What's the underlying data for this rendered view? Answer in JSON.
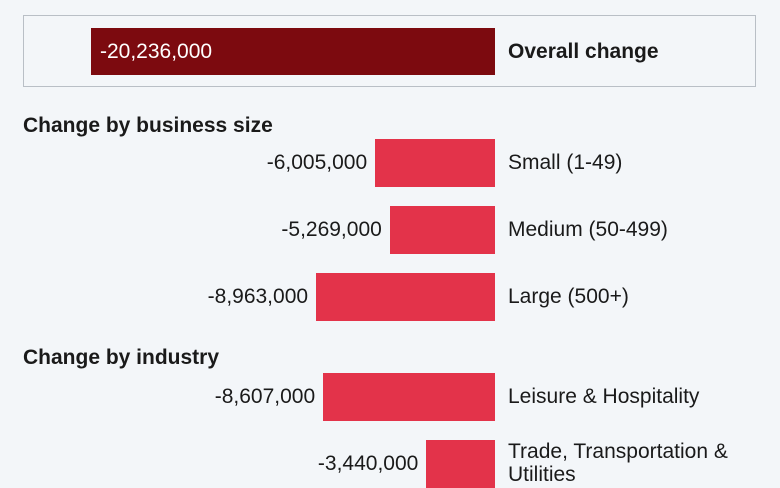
{
  "chart_data": {
    "type": "bar",
    "orientation": "horizontal",
    "overall": {
      "label": "Overall change",
      "value": -20236000,
      "value_label": "-20,236,000",
      "color": "#7c0a0f"
    },
    "sections": [
      {
        "title": "Change by business size",
        "color": "#e3334a",
        "categories": [
          "Small (1-49)",
          "Medium (50-499)",
          "Large (500+)"
        ],
        "values": [
          -6005000,
          -5269000,
          -8963000
        ],
        "value_labels": [
          "-6,005,000",
          "-5,269,000",
          "-8,963,000"
        ]
      },
      {
        "title": "Change by industry",
        "color": "#e3334a",
        "categories": [
          "Leisure & Hospitality",
          "Trade, Transportation & Utilities"
        ],
        "values": [
          -8607000,
          -3440000
        ],
        "value_labels": [
          "-8,607,000",
          "-3,440,000"
        ]
      }
    ]
  }
}
